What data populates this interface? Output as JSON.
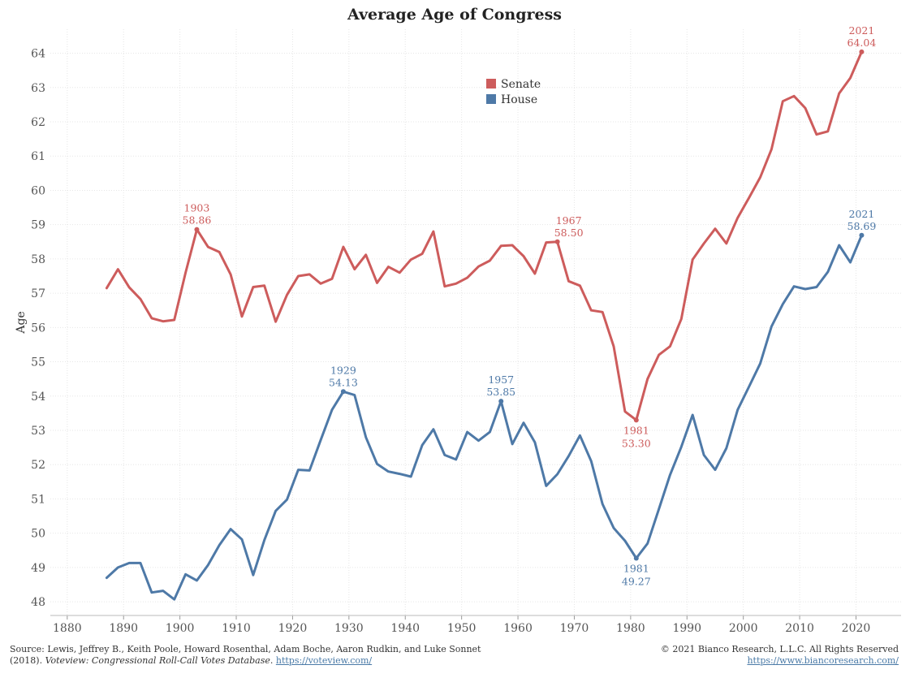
{
  "chart_data": {
    "type": "line",
    "title": "Average Age of Congress",
    "xlabel": "",
    "ylabel": "Age",
    "xlim": [
      1877,
      2028
    ],
    "ylim": [
      47.6,
      64.7
    ],
    "x_ticks": [
      1880,
      1890,
      1900,
      1910,
      1920,
      1930,
      1940,
      1950,
      1960,
      1970,
      1980,
      1990,
      2000,
      2010,
      2020
    ],
    "y_ticks": [
      48,
      49,
      50,
      51,
      52,
      53,
      54,
      55,
      56,
      57,
      58,
      59,
      60,
      61,
      62,
      63,
      64
    ],
    "grid": true,
    "legend_position": "top-center",
    "series": [
      {
        "name": "Senate",
        "color": "#cd5c5c",
        "x": [
          1887,
          1889,
          1891,
          1893,
          1895,
          1897,
          1899,
          1901,
          1903,
          1905,
          1907,
          1909,
          1911,
          1913,
          1915,
          1917,
          1919,
          1921,
          1923,
          1925,
          1927,
          1929,
          1931,
          1933,
          1935,
          1937,
          1939,
          1941,
          1943,
          1945,
          1947,
          1949,
          1951,
          1953,
          1955,
          1957,
          1959,
          1961,
          1963,
          1965,
          1967,
          1969,
          1971,
          1973,
          1975,
          1977,
          1979,
          1981,
          1983,
          1985,
          1987,
          1989,
          1991,
          1993,
          1995,
          1997,
          1999,
          2001,
          2003,
          2005,
          2007,
          2009,
          2011,
          2013,
          2015,
          2017,
          2019,
          2021
        ],
        "values": [
          57.15,
          57.7,
          57.17,
          56.83,
          56.27,
          56.18,
          56.22,
          57.6,
          58.86,
          58.35,
          58.2,
          57.55,
          56.32,
          57.18,
          57.22,
          56.17,
          56.95,
          57.5,
          57.55,
          57.28,
          57.42,
          58.35,
          57.7,
          58.12,
          57.3,
          57.77,
          57.6,
          57.98,
          58.15,
          58.8,
          57.2,
          57.28,
          57.45,
          57.78,
          57.95,
          58.38,
          58.4,
          58.08,
          57.57,
          58.48,
          58.5,
          57.35,
          57.22,
          56.5,
          56.45,
          55.45,
          53.55,
          53.3,
          54.5,
          55.2,
          55.45,
          56.25,
          57.98,
          58.45,
          58.88,
          58.45,
          59.2,
          59.78,
          60.38,
          61.2,
          62.6,
          62.75,
          62.4,
          61.63,
          61.72,
          62.83,
          63.28,
          64.04
        ]
      },
      {
        "name": "House",
        "color": "#4e79a7",
        "x": [
          1887,
          1889,
          1891,
          1893,
          1895,
          1897,
          1899,
          1901,
          1903,
          1905,
          1907,
          1909,
          1911,
          1913,
          1915,
          1917,
          1919,
          1921,
          1923,
          1925,
          1927,
          1929,
          1931,
          1933,
          1935,
          1937,
          1939,
          1941,
          1943,
          1945,
          1947,
          1949,
          1951,
          1953,
          1955,
          1957,
          1959,
          1961,
          1963,
          1965,
          1967,
          1969,
          1971,
          1973,
          1975,
          1977,
          1979,
          1981,
          1983,
          1985,
          1987,
          1989,
          1991,
          1993,
          1995,
          1997,
          1999,
          2001,
          2003,
          2005,
          2007,
          2009,
          2011,
          2013,
          2015,
          2017,
          2019,
          2021
        ],
        "values": [
          48.7,
          49.0,
          49.13,
          49.13,
          48.27,
          48.32,
          48.07,
          48.8,
          48.62,
          49.07,
          49.65,
          50.12,
          49.82,
          48.78,
          49.8,
          50.65,
          50.98,
          51.85,
          51.83,
          52.72,
          53.6,
          54.13,
          54.03,
          52.8,
          52.02,
          51.8,
          51.73,
          51.65,
          52.57,
          53.03,
          52.28,
          52.15,
          52.95,
          52.7,
          52.95,
          53.85,
          52.6,
          53.22,
          52.65,
          51.38,
          51.72,
          52.25,
          52.85,
          52.1,
          50.85,
          50.15,
          49.78,
          49.27,
          49.7,
          50.7,
          51.7,
          52.52,
          53.45,
          52.28,
          51.85,
          52.48,
          53.6,
          54.27,
          54.95,
          56.03,
          56.68,
          57.2,
          57.12,
          57.18,
          57.62,
          58.4,
          57.9,
          58.69
        ]
      }
    ],
    "annotations": [
      {
        "series": "Senate",
        "x": 1903,
        "value": 58.86,
        "year_text": "1903",
        "value_text": "58.86",
        "placement": "above"
      },
      {
        "series": "Senate",
        "x": 1967,
        "value": 58.5,
        "year_text": "1967",
        "value_text": "58.50",
        "placement": "above-right"
      },
      {
        "series": "Senate",
        "x": 1981,
        "value": 53.3,
        "year_text": "1981",
        "value_text": "53.30",
        "placement": "below"
      },
      {
        "series": "Senate",
        "x": 2021,
        "value": 64.04,
        "year_text": "2021",
        "value_text": "64.04",
        "placement": "above"
      },
      {
        "series": "House",
        "x": 1929,
        "value": 54.13,
        "year_text": "1929",
        "value_text": "54.13",
        "placement": "above"
      },
      {
        "series": "House",
        "x": 1957,
        "value": 53.85,
        "year_text": "1957",
        "value_text": "53.85",
        "placement": "above"
      },
      {
        "series": "House",
        "x": 1981,
        "value": 49.27,
        "year_text": "1981",
        "value_text": "49.27",
        "placement": "below"
      },
      {
        "series": "House",
        "x": 2021,
        "value": 58.69,
        "year_text": "2021",
        "value_text": "58.69",
        "placement": "above"
      }
    ]
  },
  "footer": {
    "source_line1": "Source: Lewis, Jeffrey B., Keith Poole, Howard Rosenthal, Adam Boche, Aaron Rudkin, and Luke Sonnet",
    "source_line2_prefix": "(2018). ",
    "source_line2_italic": "Voteview: Congressional Roll-Call Votes Database",
    "source_line2_sep": ". ",
    "source_link": "https://voteview.com/",
    "copyright": "© 2021 Bianco Research, L.L.C. All Rights Reserved",
    "copyright_link": "https://www.biancoresearch.com/"
  }
}
